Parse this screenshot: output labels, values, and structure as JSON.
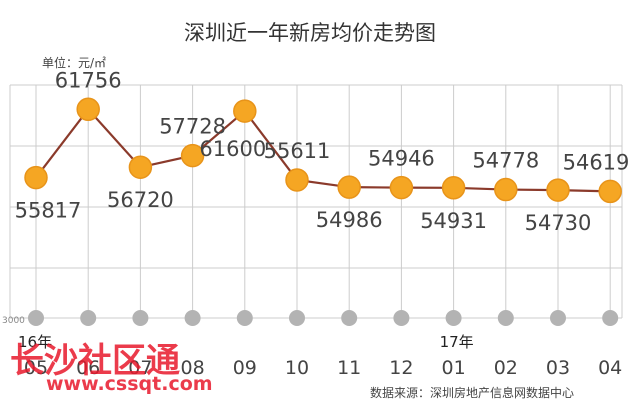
{
  "chart_data": {
    "type": "line",
    "title": "深圳近一年新房均价走势图",
    "unit_label": "单位：元/㎡",
    "categories": [
      "05",
      "06",
      "07",
      "08",
      "09",
      "10",
      "11",
      "12",
      "01",
      "02",
      "03",
      "04"
    ],
    "values": [
      55817,
      61756,
      56720,
      57728,
      61600,
      55611,
      54986,
      54946,
      54931,
      54778,
      54730,
      54619
    ],
    "year_markers": [
      {
        "index": 0,
        "label": "16年"
      },
      {
        "index": 8,
        "label": "17年"
      }
    ],
    "y_tick_visible": "3000",
    "ylim": [
      30000,
      66000
    ],
    "grid": true,
    "colors": {
      "line": "#8b3a2b",
      "point": "#f5a623",
      "point_stroke": "#e8941a",
      "grid": "#cccccc",
      "axis_dot": "#b3b3b3"
    },
    "source": "数据来源：深圳房地产信息网数据中心"
  },
  "watermark": {
    "line1": "长沙社区通",
    "line2": "www.cssqt.com"
  }
}
